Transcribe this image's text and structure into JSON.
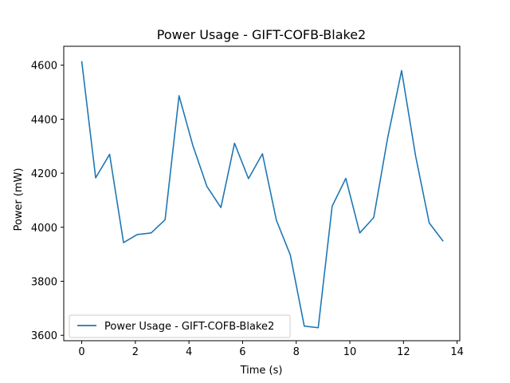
{
  "chart_data": {
    "type": "line",
    "title": "Power Usage - GIFT-COFB-Blake2",
    "xlabel": "Time (s)",
    "ylabel": "Power (mW)",
    "xlim": [
      -0.67,
      14.1
    ],
    "ylim": [
      3580,
      4670
    ],
    "xticks": [
      0,
      2,
      4,
      6,
      8,
      10,
      12,
      14
    ],
    "yticks": [
      3600,
      3800,
      4000,
      4200,
      4400,
      4600
    ],
    "grid": false,
    "legend_position": "lower-left",
    "series": [
      {
        "name": "Power Usage - GIFT-COFB-Blake2",
        "color": "#1f77b4",
        "x": [
          0.0,
          0.52,
          1.04,
          1.56,
          2.07,
          2.59,
          3.11,
          3.63,
          4.15,
          4.67,
          5.19,
          5.7,
          6.22,
          6.74,
          7.26,
          7.78,
          8.3,
          8.82,
          9.34,
          9.85,
          10.37,
          10.89,
          11.41,
          11.93,
          12.45,
          12.96,
          13.48
        ],
        "y": [
          4615,
          4183,
          4270,
          3943,
          3973,
          3979,
          4028,
          4487,
          4301,
          4151,
          4073,
          4311,
          4180,
          4272,
          4026,
          3897,
          3634,
          3628,
          4078,
          4181,
          3979,
          4036,
          4331,
          4580,
          4265,
          4016,
          3948
        ]
      }
    ]
  }
}
